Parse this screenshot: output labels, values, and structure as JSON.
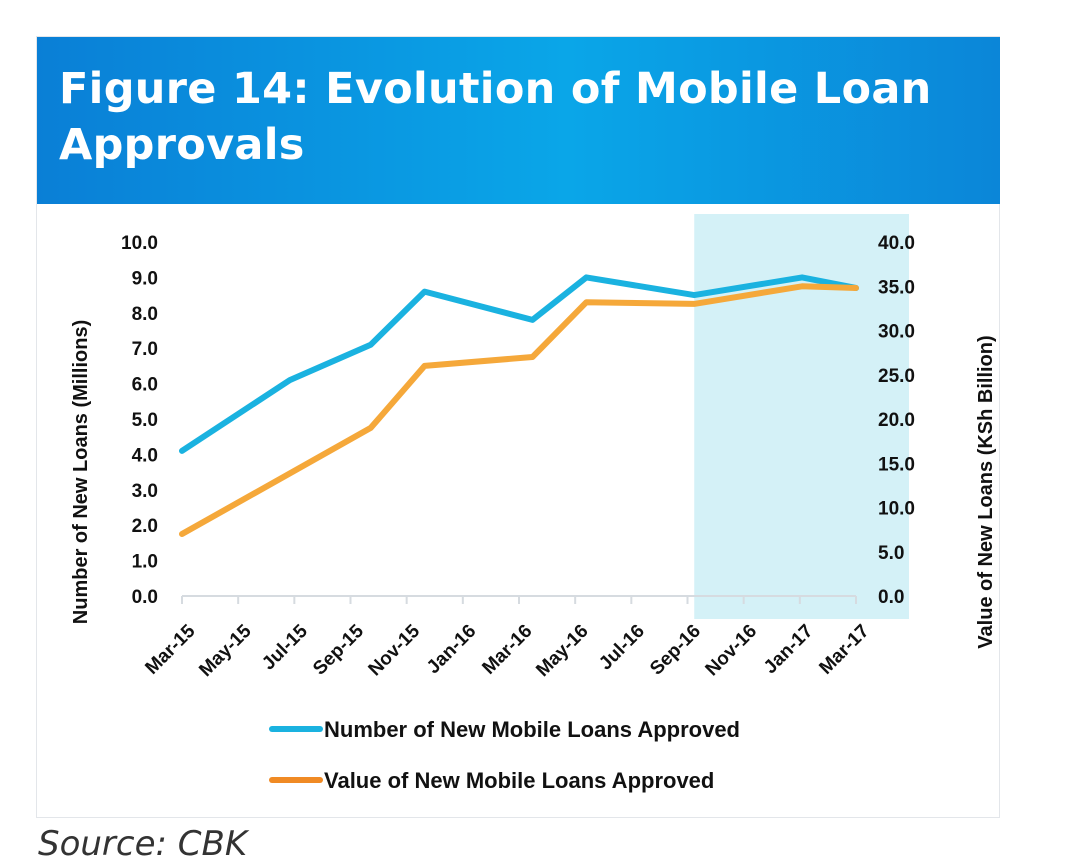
{
  "header": {
    "title": "Figure 14: Evolution of Mobile Loan Approvals"
  },
  "source": "Source: CBK",
  "colors": {
    "number_series": "#1ab2e0",
    "value_series": "#f5a83a",
    "value_legend": "#f08a24",
    "highlight": "#cdeef6",
    "banner": "#0a90de"
  },
  "chart_data": {
    "type": "line",
    "categories": [
      "Mar-15",
      "May-15",
      "Jul-15",
      "Sep-15",
      "Nov-15",
      "Jan-16",
      "Mar-16",
      "May-16",
      "Jul-16",
      "Sep-16",
      "Nov-16",
      "Jan-17",
      "Mar-17"
    ],
    "ylabel": "Number of New Loans (Millions)",
    "y2label": "Value of New Loans (KSh Billion)",
    "ylim": [
      0,
      10
    ],
    "y2lim": [
      0,
      40
    ],
    "yticks": [
      "0.0",
      "1.0",
      "2.0",
      "3.0",
      "4.0",
      "5.0",
      "6.0",
      "7.0",
      "8.0",
      "9.0",
      "10.0"
    ],
    "y2ticks": [
      "0.0",
      "5.0",
      "10.0",
      "15.0",
      "20.0",
      "25.0",
      "30.0",
      "35.0",
      "40.0"
    ],
    "highlight_range": [
      "Oct-16",
      "Apr-17"
    ],
    "series": [
      {
        "name": "Number of New Mobile Loans Approved",
        "axis": "left",
        "points": [
          {
            "x": "Mar-15",
            "y": 4.1
          },
          {
            "x": "Jul-15",
            "y": 6.1
          },
          {
            "x": "Oct-15",
            "y": 7.1
          },
          {
            "x": "Dec-15",
            "y": 8.6
          },
          {
            "x": "Apr-16",
            "y": 7.8
          },
          {
            "x": "Jun-16",
            "y": 9.0
          },
          {
            "x": "Oct-16",
            "y": 8.5
          },
          {
            "x": "Feb-17",
            "y": 9.0
          },
          {
            "x": "Apr-17",
            "y": 8.7
          }
        ]
      },
      {
        "name": "Value of New Mobile Loans Approved",
        "axis": "right",
        "points": [
          {
            "x": "Mar-15",
            "y": 7.0
          },
          {
            "x": "Oct-15",
            "y": 19.0
          },
          {
            "x": "Dec-15",
            "y": 26.0
          },
          {
            "x": "Apr-16",
            "y": 27.0
          },
          {
            "x": "Jun-16",
            "y": 33.2
          },
          {
            "x": "Oct-16",
            "y": 33.0
          },
          {
            "x": "Feb-17",
            "y": 35.0
          },
          {
            "x": "Apr-17",
            "y": 34.8
          }
        ]
      }
    ],
    "legend": [
      "Number of New Mobile Loans Approved",
      "Value of New Mobile Loans Approved"
    ]
  }
}
